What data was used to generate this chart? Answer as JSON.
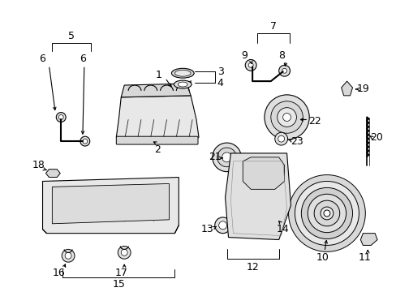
{
  "bg_color": "#ffffff",
  "lc": "#000000",
  "fig_width": 4.89,
  "fig_height": 3.6,
  "dpi": 100
}
